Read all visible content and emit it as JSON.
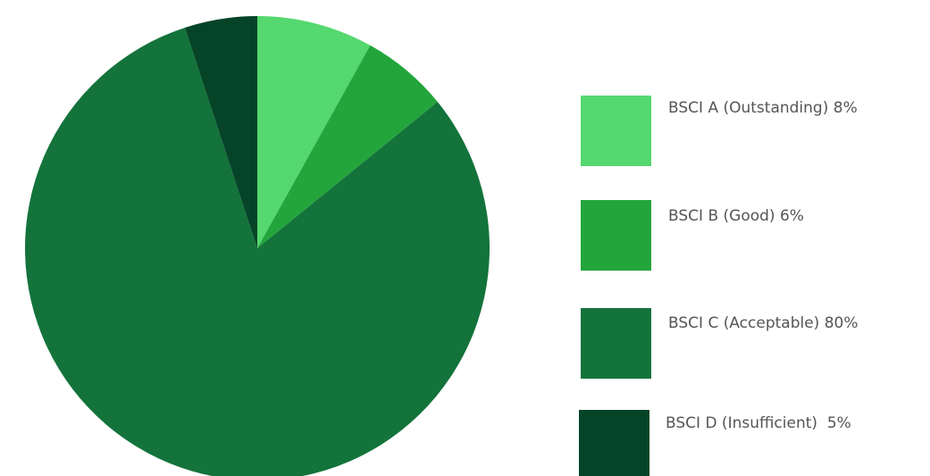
{
  "chart_data": {
    "type": "pie",
    "title": "",
    "legend_position": "right",
    "slices": [
      {
        "label": "BSCI A (Outstanding) 8%",
        "value": 8,
        "color": "#55d86f"
      },
      {
        "label": "BSCI B (Good) 6%",
        "value": 6,
        "color": "#24a53c"
      },
      {
        "label": "BSCI C (Acceptable) 80%",
        "value": 80,
        "color": "#13733b"
      },
      {
        "label": "BSCI D (Insufficient)  5%",
        "value": 5,
        "color": "#064428"
      }
    ]
  }
}
